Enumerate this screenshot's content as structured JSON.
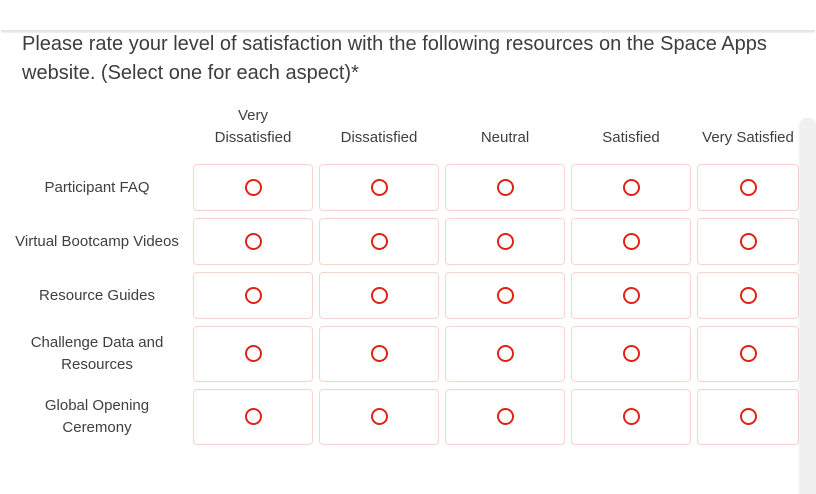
{
  "page": {
    "title": "Please rate your level of satisfaction with the following resources on the Space Apps website. (Select one for each aspect)*"
  },
  "matrix": {
    "column_headers": [
      "Very Dissatisfied",
      "Dissatisfied",
      "Neutral",
      "Satisfied",
      "Very Satisfied"
    ],
    "row_labels": [
      "Participant FAQ",
      "Virtual Bootcamp Videos",
      "Resource Guides",
      "Challenge Data and Resources",
      "Global Opening Ceremony"
    ],
    "radio_state": "unselected"
  },
  "colors": {
    "radio_red": "#df2318",
    "cell_border": "#f5d6cf",
    "text": "#3d3d3d",
    "scrollbar": "#f0f0f0"
  }
}
